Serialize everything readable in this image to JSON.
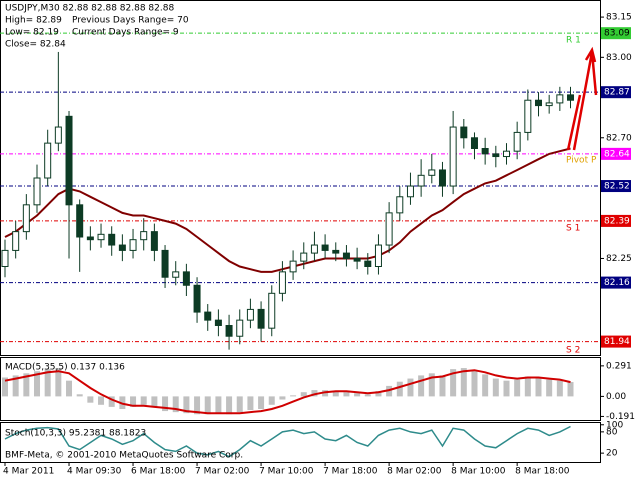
{
  "chart_data": [
    {
      "type": "candlestick",
      "title": "USDJPY,M30  82.88 82.88 82.88 82.88",
      "info": [
        "High= 82.89",
        "Previous Days Range= 70",
        "Low= 82.19",
        "Current Days Range= 9",
        "Close= 82.84"
      ],
      "footer": "BMF-Meta, © 2001-2010 MetaQuotes Software Corp.",
      "annotations": [
        "R 1",
        "Pivot P",
        "S 1",
        "S 2"
      ],
      "categories": [
        "4 Mar 2011",
        null,
        null,
        null,
        null,
        null,
        "4 Mar 09:30",
        null,
        null,
        null,
        null,
        null,
        "6 Mar 18:00",
        null,
        null,
        null,
        null,
        null,
        "7 Mar 02:00",
        null,
        null,
        null,
        null,
        null,
        "7 Mar 10:00",
        null,
        null,
        null,
        null,
        null,
        "7 Mar 18:00",
        null,
        null,
        null,
        null,
        null,
        "8 Mar 02:00",
        null,
        null,
        null,
        null,
        null,
        "8 Mar 10:00",
        null,
        null,
        null,
        null,
        null,
        "8 Mar 18:00",
        null,
        null,
        null,
        null,
        null
      ],
      "open": [
        82.22,
        82.28,
        82.35,
        82.45,
        82.55,
        82.68,
        82.78,
        82.45,
        82.33,
        82.32,
        82.34,
        82.3,
        82.28,
        82.32,
        82.35,
        82.28,
        82.18,
        82.2,
        82.15,
        82.05,
        82.02,
        82.0,
        81.96,
        82.02,
        82.06,
        81.99,
        82.12,
        82.2,
        82.24,
        82.27,
        82.3,
        82.28,
        82.27,
        82.25,
        82.24,
        82.22,
        82.3,
        82.42,
        82.48,
        82.52,
        82.56,
        82.58,
        82.52,
        82.74,
        82.7,
        82.66,
        82.64,
        82.63,
        82.65,
        82.72,
        82.84,
        82.82,
        82.83,
        82.86
      ],
      "high": [
        82.32,
        82.39,
        82.49,
        82.6,
        82.73,
        83.02,
        82.8,
        82.47,
        82.37,
        82.38,
        82.37,
        82.34,
        82.36,
        82.4,
        82.38,
        82.3,
        82.24,
        82.23,
        82.18,
        82.08,
        82.06,
        82.04,
        82.06,
        82.1,
        82.09,
        82.15,
        82.24,
        82.28,
        82.31,
        82.35,
        82.34,
        82.31,
        82.3,
        82.29,
        82.27,
        82.34,
        82.46,
        82.52,
        82.57,
        82.62,
        82.64,
        82.61,
        82.8,
        82.77,
        82.72,
        82.7,
        82.67,
        82.68,
        82.76,
        82.88,
        82.87,
        82.86,
        82.89,
        82.89
      ],
      "low": [
        82.18,
        82.25,
        82.32,
        82.42,
        82.52,
        82.65,
        82.25,
        82.2,
        82.28,
        82.29,
        82.26,
        82.24,
        82.25,
        82.28,
        82.24,
        82.14,
        82.15,
        82.11,
        82.01,
        81.98,
        81.96,
        81.91,
        81.93,
        81.99,
        81.94,
        81.96,
        82.09,
        82.17,
        82.21,
        82.24,
        82.25,
        82.24,
        82.22,
        82.21,
        82.19,
        82.19,
        82.27,
        82.39,
        82.45,
        82.48,
        82.53,
        82.48,
        82.49,
        82.66,
        82.62,
        82.6,
        82.59,
        82.6,
        82.62,
        82.69,
        82.78,
        82.79,
        82.8,
        82.81
      ],
      "close": [
        82.28,
        82.35,
        82.45,
        82.55,
        82.68,
        82.74,
        82.45,
        82.33,
        82.32,
        82.34,
        82.3,
        82.28,
        82.32,
        82.35,
        82.28,
        82.18,
        82.2,
        82.15,
        82.05,
        82.02,
        82.0,
        81.96,
        82.02,
        82.06,
        81.99,
        82.12,
        82.2,
        82.24,
        82.27,
        82.3,
        82.28,
        82.27,
        82.25,
        82.24,
        82.22,
        82.3,
        82.42,
        82.48,
        82.52,
        82.56,
        82.58,
        82.52,
        82.74,
        82.7,
        82.66,
        82.64,
        82.63,
        82.65,
        82.72,
        82.84,
        82.82,
        82.83,
        82.86,
        82.84
      ],
      "series": [
        {
          "color": "#800000",
          "values": [
            82.33,
            82.35,
            82.38,
            82.41,
            82.45,
            82.49,
            82.51,
            82.5,
            82.48,
            82.46,
            82.44,
            82.42,
            82.41,
            82.41,
            82.4,
            82.39,
            82.38,
            82.36,
            82.33,
            82.3,
            82.27,
            82.24,
            82.22,
            82.21,
            82.2,
            82.2,
            82.21,
            82.22,
            82.23,
            82.24,
            82.25,
            82.25,
            82.25,
            82.25,
            82.25,
            82.26,
            82.28,
            82.31,
            82.35,
            82.38,
            82.41,
            82.43,
            82.46,
            82.49,
            82.51,
            82.53,
            82.54,
            82.56,
            82.58,
            82.6,
            82.62,
            82.64,
            82.65,
            82.66
          ]
        }
      ],
      "up_color": "#ffffff",
      "down_color": "#0d3b24",
      "candle_edge": "#0d3b24",
      "ylim": [
        81.89,
        83.21
      ],
      "yticks": [
        83.15,
        {
          "value": 83,
          "label": "83.00"
        },
        {
          "value": 82.7,
          "label": "82.70"
        },
        82.25
      ],
      "levels": [
        {
          "value": 83.09,
          "color": "#33cc33",
          "text_color": "#000000"
        },
        {
          "value": 82.87,
          "color": "#000080",
          "text_color": "#ffffff"
        },
        {
          "value": 82.64,
          "color": "#ff00ff",
          "text_color": "#ffffff"
        },
        {
          "value": 82.52,
          "color": "#000080",
          "text_color": "#ffffff"
        },
        {
          "value": 82.39,
          "color": "#e00000",
          "text_color": "#ffffff"
        },
        {
          "value": 82.16,
          "color": "#000080",
          "text_color": "#ffffff"
        },
        {
          "value": 81.94,
          "color": "#e00000",
          "text_color": "#ffffff"
        }
      ]
    },
    {
      "type": "macd",
      "title": "MACD(5,35,5) 0.137 0.136",
      "values": [
        0.18,
        0.2,
        0.22,
        0.24,
        0.26,
        0.27,
        0.15,
        0.02,
        -0.06,
        -0.08,
        -0.1,
        -0.12,
        -0.1,
        -0.08,
        -0.1,
        -0.14,
        -0.15,
        -0.16,
        -0.17,
        -0.17,
        -0.16,
        -0.17,
        -0.15,
        -0.13,
        -0.12,
        -0.08,
        -0.03,
        0.01,
        0.04,
        0.06,
        0.06,
        0.05,
        0.04,
        0.03,
        0.02,
        0.05,
        0.1,
        0.14,
        0.17,
        0.2,
        0.22,
        0.2,
        0.26,
        0.27,
        0.25,
        0.21,
        0.17,
        0.15,
        0.16,
        0.19,
        0.18,
        0.16,
        0.15,
        0.137
      ],
      "color": "#c0c0c0",
      "signal": [
        0.15,
        0.17,
        0.19,
        0.21,
        0.23,
        0.24,
        0.22,
        0.15,
        0.08,
        0.02,
        -0.03,
        -0.07,
        -0.09,
        -0.09,
        -0.1,
        -0.11,
        -0.12,
        -0.14,
        -0.15,
        -0.16,
        -0.16,
        -0.16,
        -0.16,
        -0.15,
        -0.14,
        -0.12,
        -0.09,
        -0.05,
        -0.01,
        0.02,
        0.04,
        0.05,
        0.05,
        0.04,
        0.03,
        0.04,
        0.06,
        0.09,
        0.12,
        0.15,
        0.18,
        0.19,
        0.22,
        0.24,
        0.25,
        0.23,
        0.2,
        0.18,
        0.17,
        0.18,
        0.18,
        0.17,
        0.16,
        0.136
      ],
      "signal_color": "#d00000",
      "ylim": [
        -0.225,
        0.366
      ],
      "yticks": [
        0.291,
        {
          "value": 0,
          "label": "0.00"
        },
        -0.191
      ]
    },
    {
      "type": "stochastic",
      "title": "Stoch(10,3,3) 95.2381 88.1823",
      "values": [
        60,
        75,
        85,
        90,
        92,
        88,
        40,
        30,
        50,
        70,
        60,
        45,
        55,
        75,
        50,
        30,
        25,
        40,
        20,
        15,
        25,
        10,
        30,
        55,
        40,
        60,
        80,
        85,
        75,
        80,
        60,
        55,
        70,
        50,
        40,
        70,
        85,
        90,
        80,
        75,
        85,
        40,
        90,
        85,
        60,
        40,
        35,
        55,
        75,
        90,
        85,
        70,
        80,
        95.2381
      ],
      "color": "#2e8b8b",
      "ylim": [
        -5,
        105
      ],
      "yticks": [
        100,
        80,
        20
      ]
    }
  ]
}
